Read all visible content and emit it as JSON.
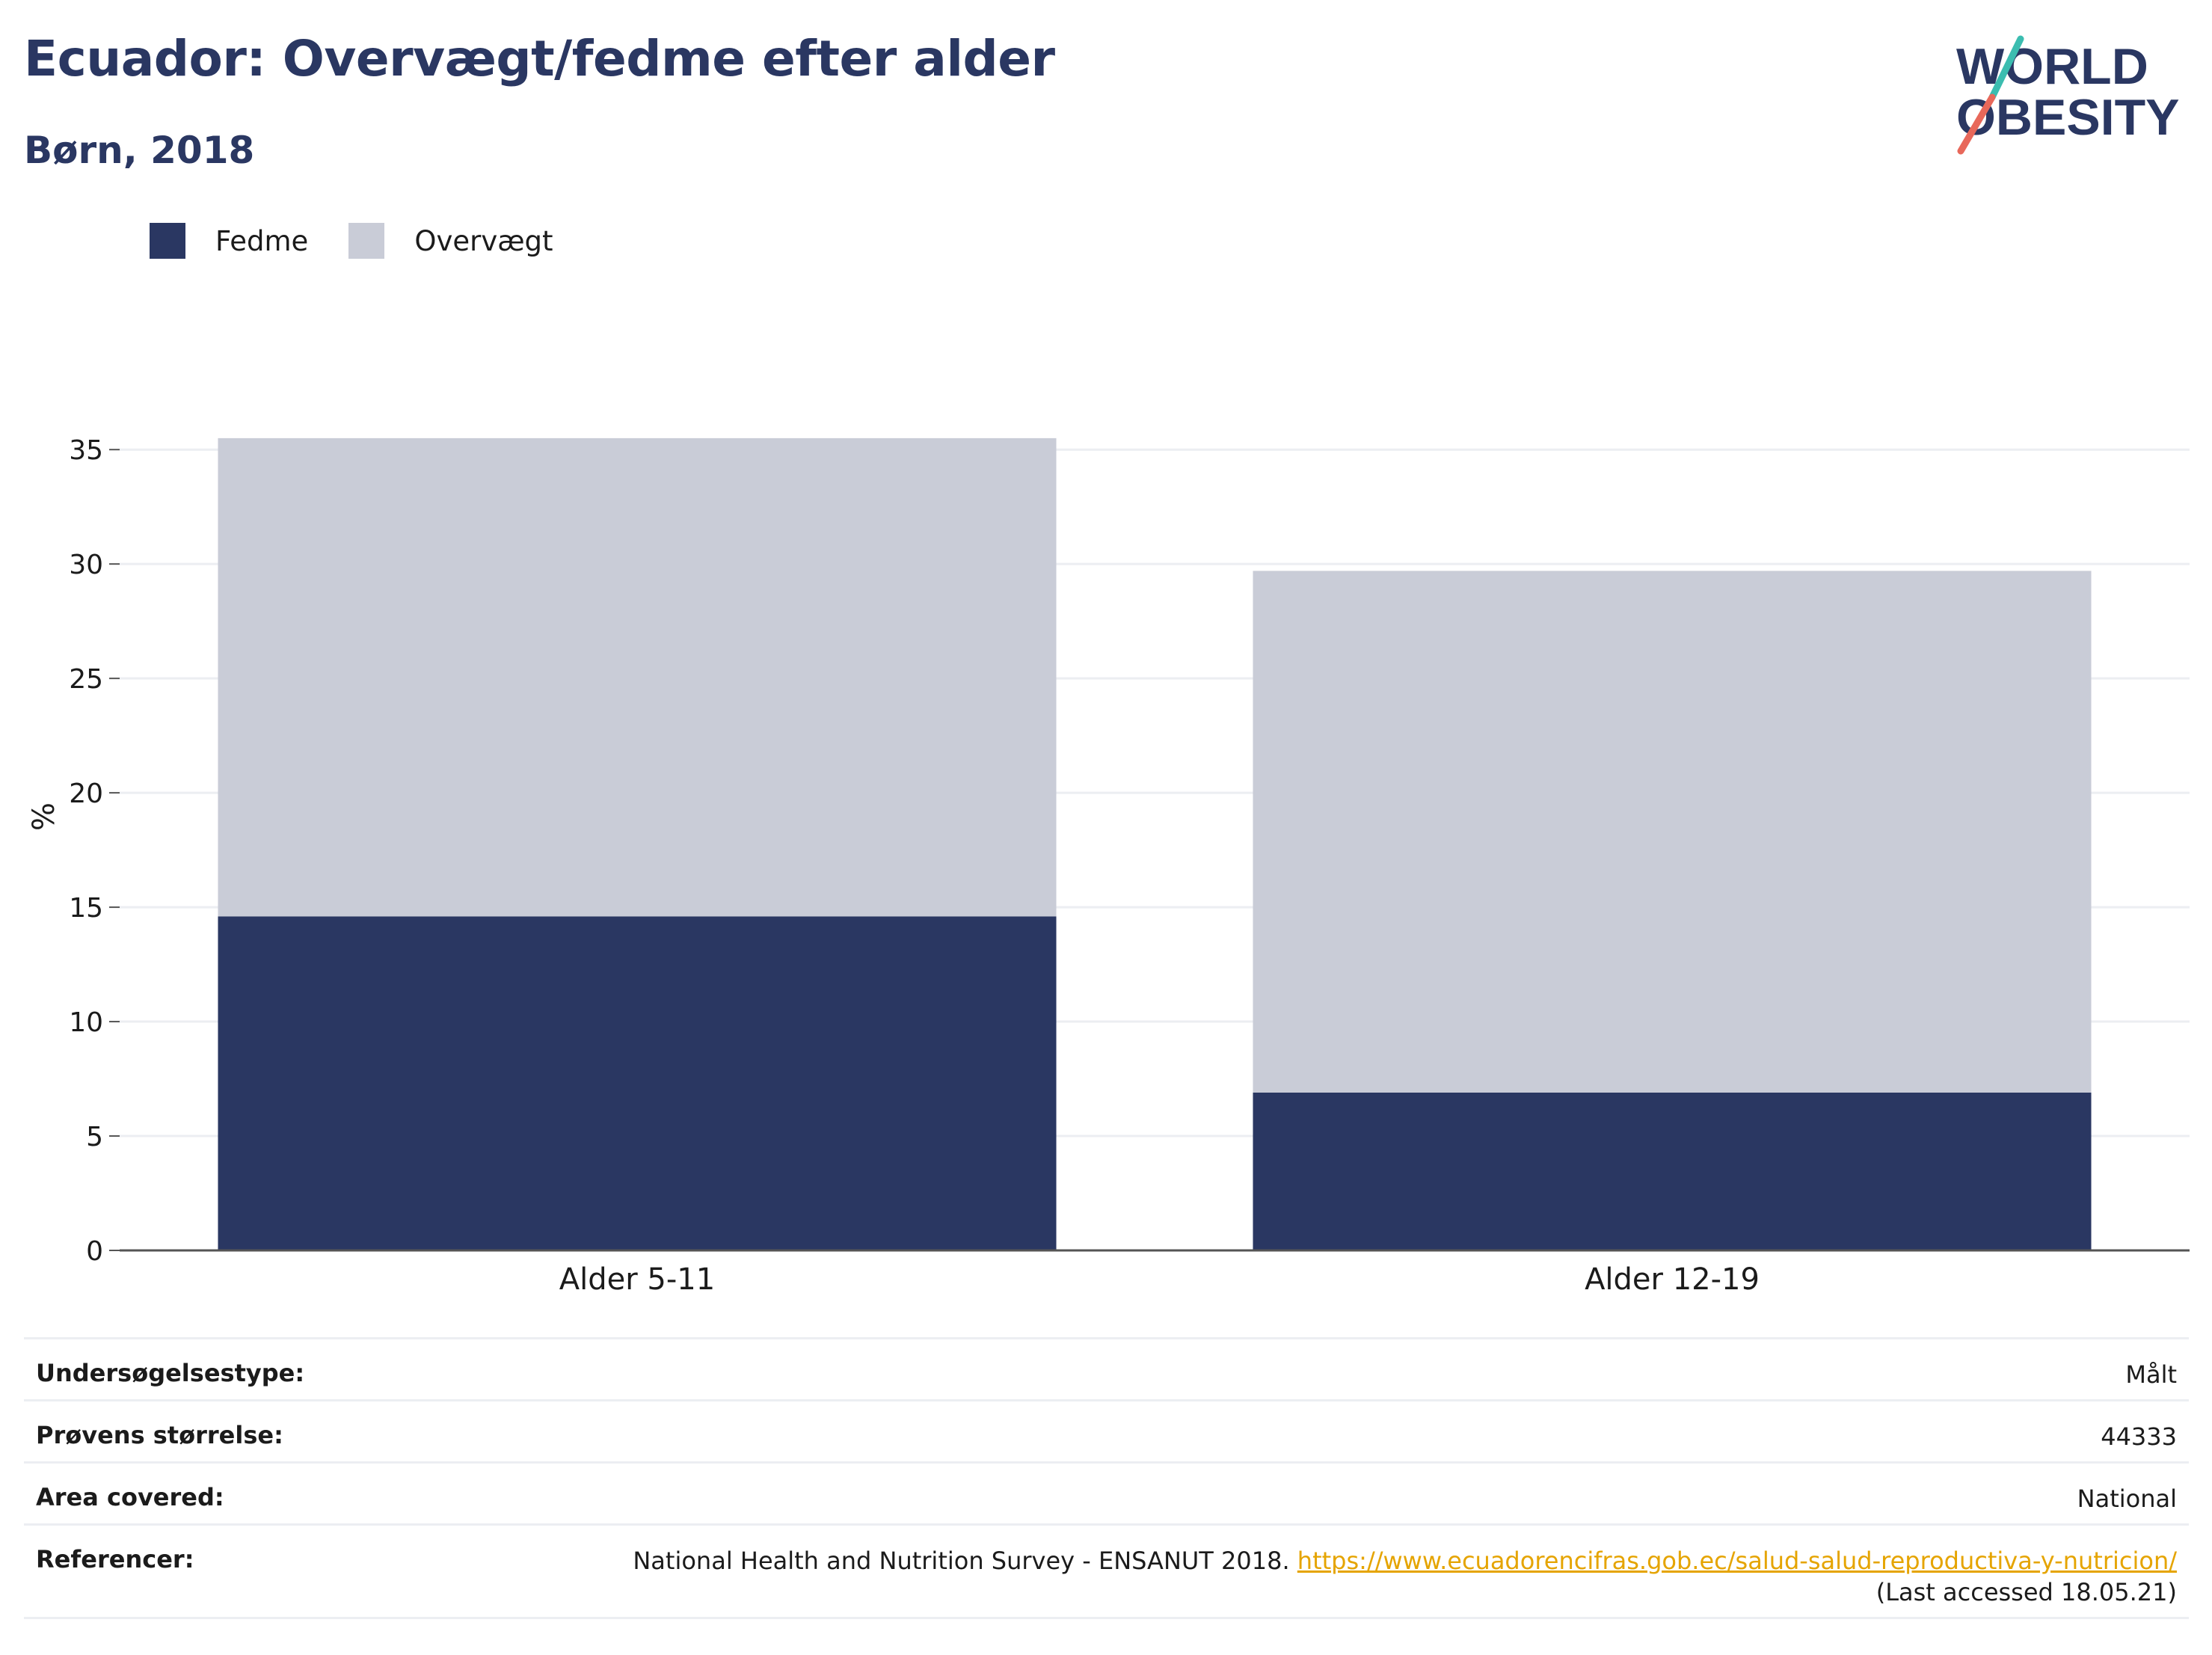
{
  "header": {
    "title": "Ecuador: Overvægt/fedme efter alder",
    "subtitle": "Børn, 2018"
  },
  "logo": {
    "line1": "WORLD",
    "line2": "OBESITY",
    "accent_top": "#3bbdb0",
    "accent_bottom": "#e8685a"
  },
  "legend": {
    "items": [
      {
        "label": "Fedme",
        "color": "#2a3762"
      },
      {
        "label": "Overvægt",
        "color": "#c9ccd7"
      }
    ]
  },
  "chart_data": {
    "type": "bar",
    "stacked": true,
    "categories": [
      "Alder 5-11",
      "Alder 12-19"
    ],
    "series": [
      {
        "name": "Fedme",
        "values": [
          14.6,
          6.9
        ],
        "color": "#2a3762"
      },
      {
        "name": "Overvægt",
        "values": [
          20.9,
          22.8
        ],
        "color": "#c9ccd7"
      }
    ],
    "ylabel": "%",
    "ylim": [
      0,
      37
    ],
    "yticks": [
      0,
      5,
      10,
      15,
      20,
      25,
      30,
      35
    ],
    "grid": true,
    "legend_position": "top-left"
  },
  "meta": {
    "rows": [
      {
        "label": "Undersøgelsestype:",
        "value": "Målt"
      },
      {
        "label": "Prøvens størrelse:",
        "value": "44333"
      },
      {
        "label": "Area covered:",
        "value": "National"
      }
    ],
    "reference": {
      "label": "Referencer:",
      "text": "National Health and Nutrition Survey - ENSANUT 2018.",
      "link": "https://www.ecuadorencifras.gob.ec/salud-salud-reproductiva-y-nutricion/",
      "accessed": "(Last accessed 18.05.21)"
    }
  }
}
